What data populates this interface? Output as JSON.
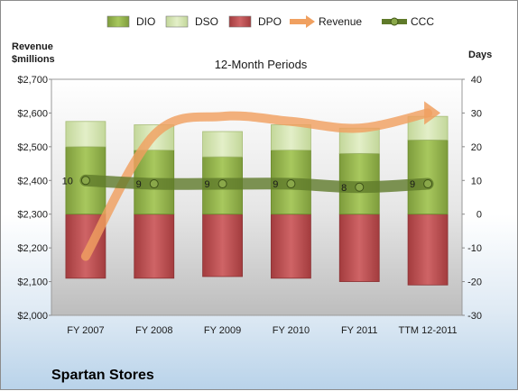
{
  "chart_data": {
    "type": "bar",
    "title": "12-Month Periods",
    "company": "Spartan Stores",
    "categories": [
      "FY 2007",
      "FY 2008",
      "FY 2009",
      "FY 2010",
      "FY 2011",
      "TTM 12-2011"
    ],
    "y_left": {
      "label_line1": "Revenue",
      "label_line2": "$millions",
      "min": 2000,
      "max": 2700,
      "step": 100,
      "tick_labels": [
        "$2,000",
        "$2,100",
        "$2,200",
        "$2,300",
        "$2,400",
        "$2,500",
        "$2,600",
        "$2,700"
      ]
    },
    "y_right": {
      "label": "Days",
      "min": -30,
      "max": 40,
      "step": 10,
      "tick_labels": [
        "-30",
        "-20",
        "-10",
        "0",
        "10",
        "20",
        "30",
        "40"
      ]
    },
    "legend": [
      {
        "name": "DIO",
        "kind": "bar"
      },
      {
        "name": "DSO",
        "kind": "bar"
      },
      {
        "name": "DPO",
        "kind": "bar"
      },
      {
        "name": "Revenue",
        "kind": "arrow"
      },
      {
        "name": "CCC",
        "kind": "line"
      }
    ],
    "series": [
      {
        "name": "DIO",
        "axis": "right",
        "values": [
          20,
          19,
          17,
          19,
          18,
          22
        ]
      },
      {
        "name": "DSO",
        "axis": "right",
        "values": [
          7.5,
          7.5,
          7.5,
          7.5,
          7.5,
          7
        ]
      },
      {
        "name": "DPO",
        "axis": "right",
        "values": [
          -19,
          -19,
          -18.5,
          -19,
          -20,
          -21
        ]
      },
      {
        "name": "Revenue",
        "axis": "left",
        "values": [
          2175,
          2535,
          2590,
          2575,
          2555,
          2600
        ]
      },
      {
        "name": "CCC",
        "axis": "right",
        "values": [
          10,
          9,
          9,
          9,
          8,
          9
        ],
        "labels": [
          "10",
          "9",
          "9",
          "9",
          "8",
          "9"
        ]
      }
    ],
    "colors": {
      "DIO": "#8fb14a",
      "DSO": "#cfe0a8",
      "DPO": "#b8484a",
      "Revenue": "#f0a060",
      "CCC": "#5f7a2a"
    },
    "grid": false,
    "legend_position": "top"
  }
}
